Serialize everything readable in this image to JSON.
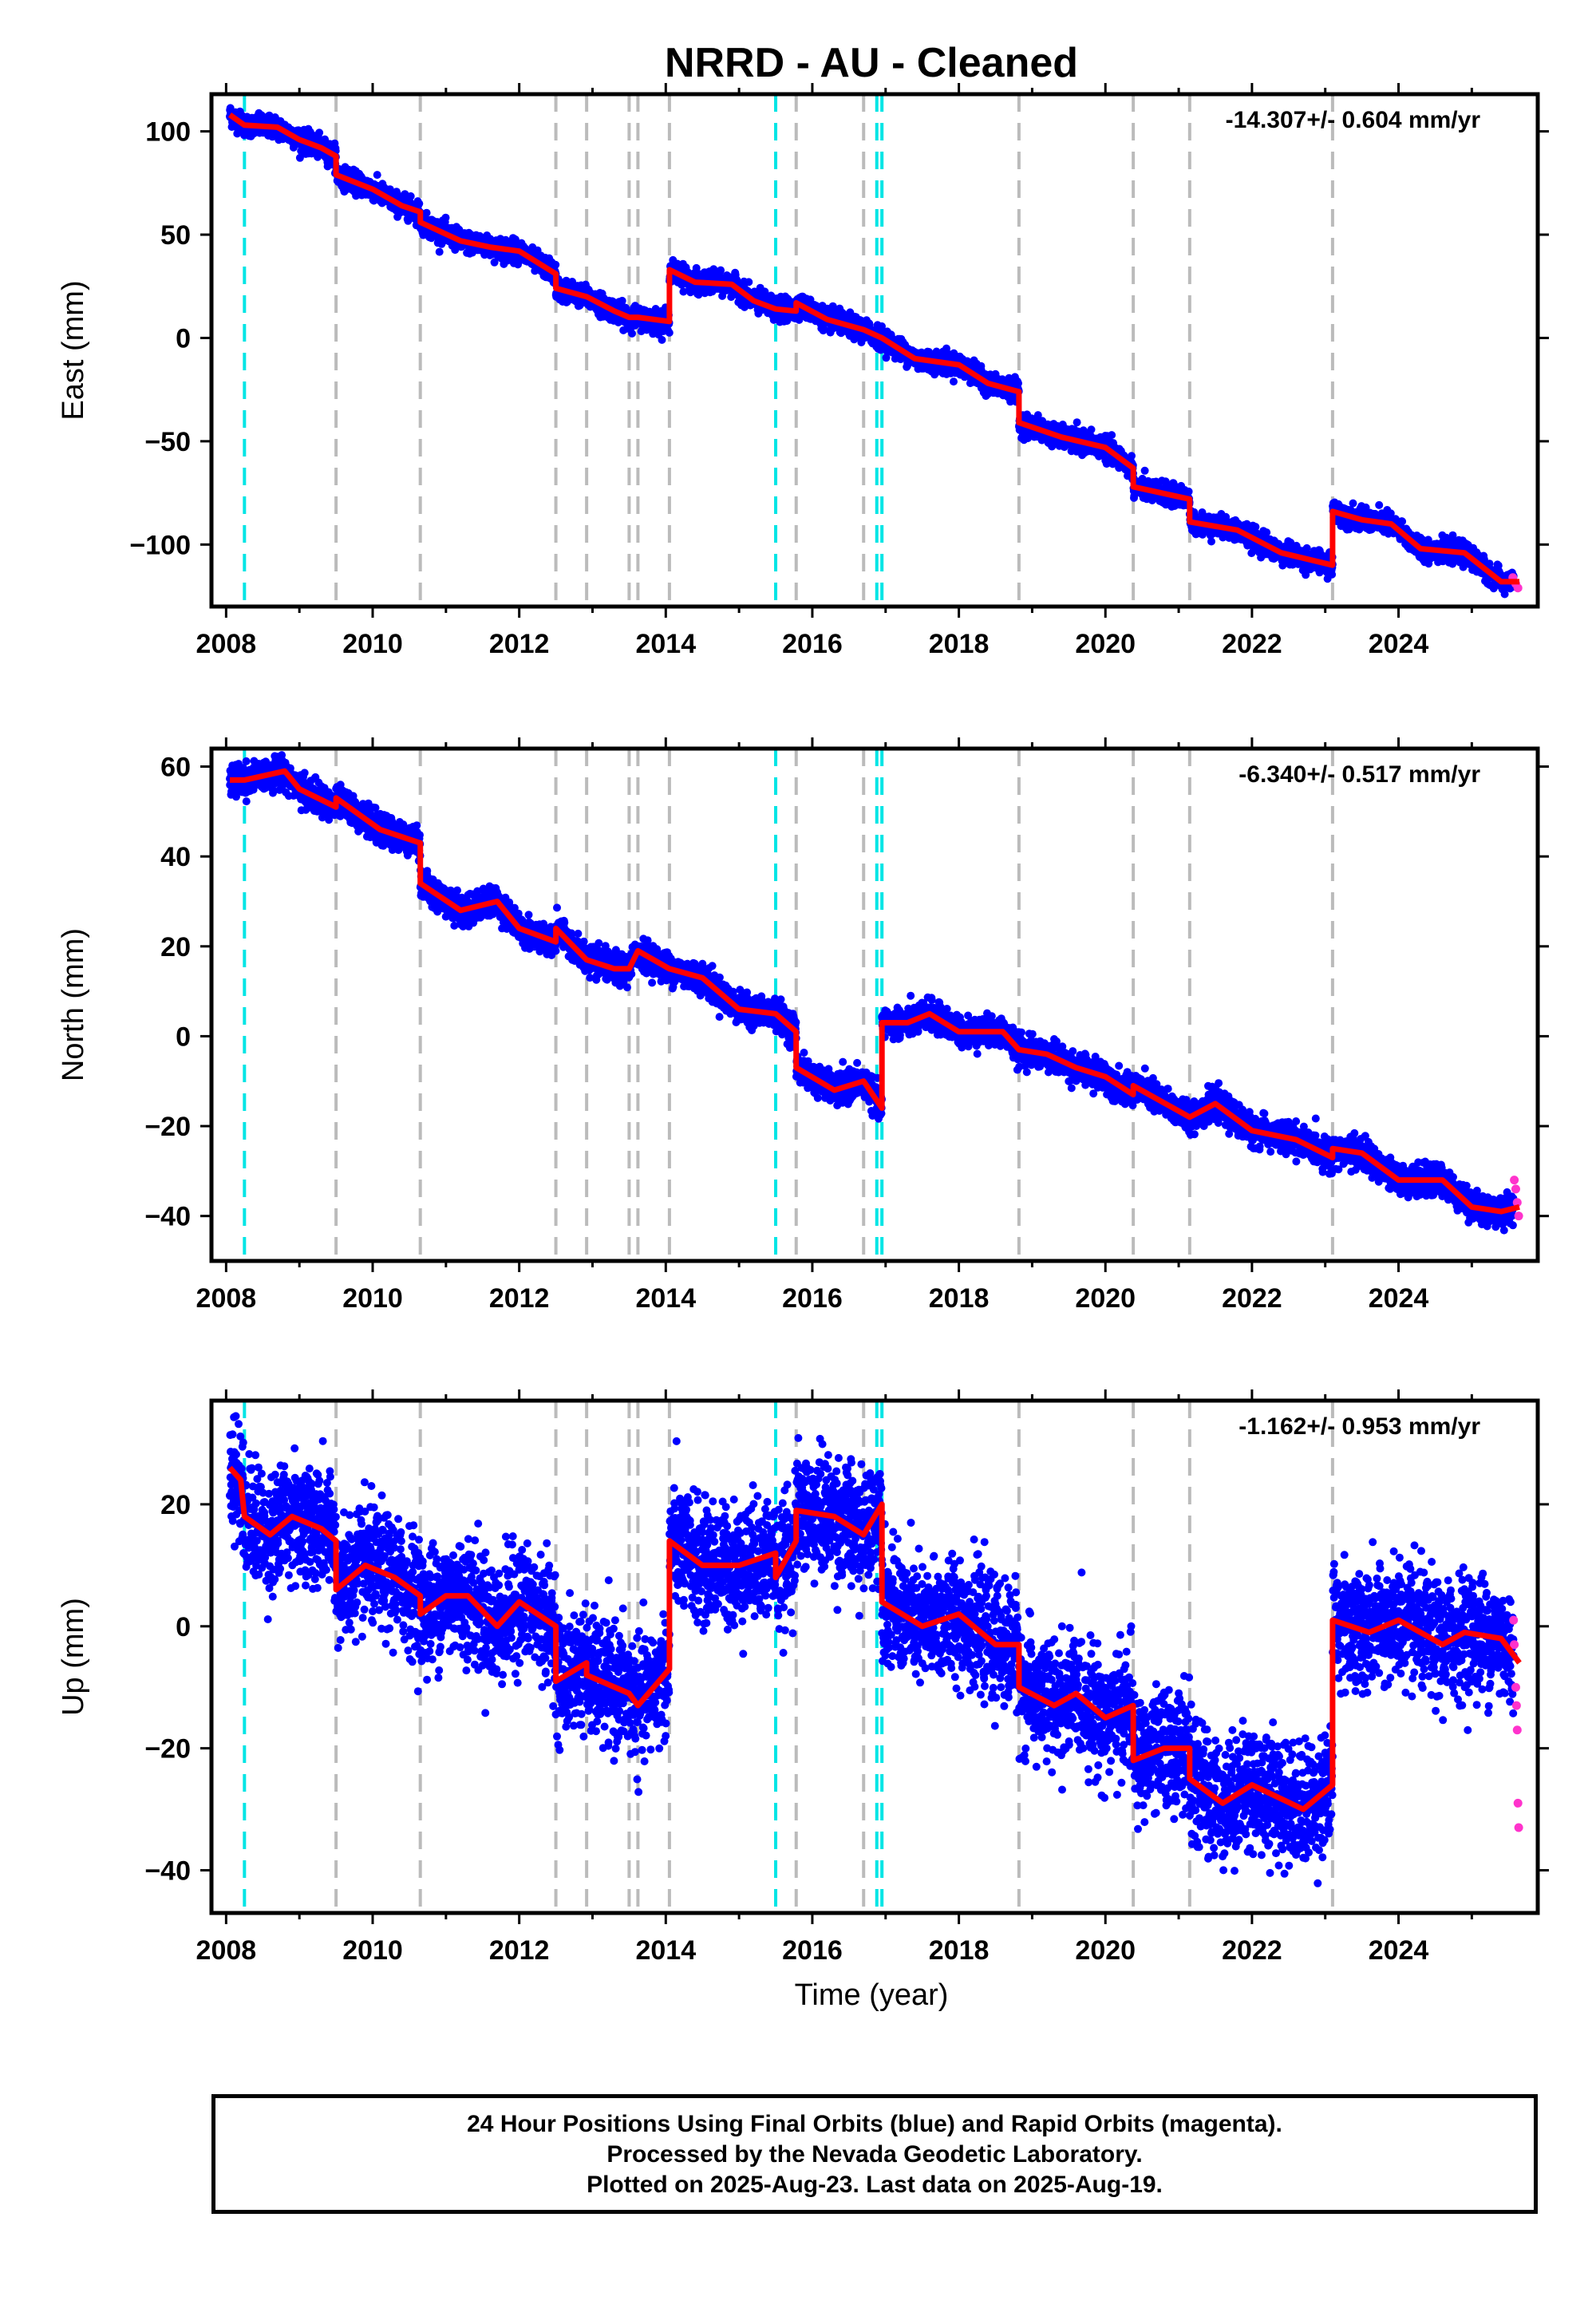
{
  "title": "NRRD  - AU - Cleaned",
  "xlabel": "Time (year)",
  "footer": {
    "line1": "24 Hour Positions Using Final Orbits (blue) and Rapid Orbits (magenta).",
    "line2": "Processed by the Nevada Geodetic Laboratory.",
    "line3": "Plotted on 2025-Aug-23. Last data on 2025-Aug-19."
  },
  "colors": {
    "final_orbits": "#0000ff",
    "rapid_orbits": "#ff33cc",
    "model": "#ff0000",
    "equipment_change": "#00e5e5",
    "earthquake": "#bbbbbb"
  },
  "chart_data": [
    {
      "type": "scatter",
      "panel": "east",
      "ylabel": "East (mm)",
      "rate_label": "-14.307+/- 0.604 mm/yr",
      "xlim": [
        2007.8,
        2025.9
      ],
      "ylim": [
        -130,
        118
      ],
      "x_ticks": [
        "2008",
        "2010",
        "2012",
        "2014",
        "2016",
        "2018",
        "2020",
        "2022",
        "2024"
      ],
      "y_ticks": [
        100,
        50,
        0,
        -50,
        -100
      ],
      "y_tick_labels": [
        "100",
        "50",
        "0",
        "−50",
        "−100"
      ],
      "cyan_lines": [
        2008.25,
        2015.5,
        2016.88,
        2016.95
      ],
      "gray_lines": [
        2009.5,
        2010.65,
        2012.5,
        2012.92,
        2013.5,
        2013.62,
        2014.05,
        2015.78,
        2016.7,
        2018.82,
        2020.38,
        2021.15,
        2023.1
      ],
      "model": [
        [
          2008.05,
          108
        ],
        [
          2008.25,
          103
        ],
        [
          2008.7,
          102
        ],
        [
          2009.0,
          96
        ],
        [
          2009.3,
          92
        ],
        [
          2009.5,
          88
        ],
        [
          2009.5,
          79
        ],
        [
          2010.0,
          72
        ],
        [
          2010.4,
          64
        ],
        [
          2010.65,
          61
        ],
        [
          2010.65,
          56
        ],
        [
          2011.2,
          47
        ],
        [
          2011.6,
          44
        ],
        [
          2012.0,
          42
        ],
        [
          2012.5,
          31
        ],
        [
          2012.5,
          24
        ],
        [
          2012.92,
          20
        ],
        [
          2013.3,
          13
        ],
        [
          2013.5,
          10
        ],
        [
          2013.62,
          10
        ],
        [
          2014.05,
          8
        ],
        [
          2014.05,
          33
        ],
        [
          2014.4,
          27
        ],
        [
          2014.9,
          26
        ],
        [
          2015.2,
          18
        ],
        [
          2015.5,
          14
        ],
        [
          2015.78,
          13
        ],
        [
          2015.78,
          17
        ],
        [
          2016.2,
          9
        ],
        [
          2016.7,
          4
        ],
        [
          2016.95,
          0
        ],
        [
          2017.4,
          -10
        ],
        [
          2018.0,
          -13
        ],
        [
          2018.4,
          -22
        ],
        [
          2018.82,
          -26
        ],
        [
          2018.82,
          -41
        ],
        [
          2019.4,
          -48
        ],
        [
          2020.0,
          -53
        ],
        [
          2020.38,
          -63
        ],
        [
          2020.38,
          -72
        ],
        [
          2021.15,
          -78
        ],
        [
          2021.15,
          -89
        ],
        [
          2021.8,
          -93
        ],
        [
          2022.4,
          -104
        ],
        [
          2023.1,
          -110
        ],
        [
          2023.1,
          -84
        ],
        [
          2023.5,
          -88
        ],
        [
          2023.9,
          -90
        ],
        [
          2024.3,
          -102
        ],
        [
          2024.9,
          -104
        ],
        [
          2025.4,
          -118
        ],
        [
          2025.65,
          -118
        ]
      ],
      "noise_sd": 2.5,
      "rapid": [
        [
          2025.56,
          -116
        ],
        [
          2025.6,
          -119
        ],
        [
          2025.63,
          -121
        ]
      ]
    },
    {
      "type": "scatter",
      "panel": "north",
      "ylabel": "North (mm)",
      "rate_label": "-6.340+/- 0.517 mm/yr",
      "xlim": [
        2007.8,
        2025.9
      ],
      "ylim": [
        -50,
        64
      ],
      "x_ticks": [
        "2008",
        "2010",
        "2012",
        "2014",
        "2016",
        "2018",
        "2020",
        "2022",
        "2024"
      ],
      "y_ticks": [
        60,
        40,
        20,
        0,
        -20,
        -40
      ],
      "y_tick_labels": [
        "60",
        "40",
        "20",
        "0",
        "−20",
        "−40"
      ],
      "cyan_lines": [
        2008.25,
        2015.5,
        2016.88,
        2016.95
      ],
      "gray_lines": [
        2009.5,
        2010.65,
        2012.5,
        2012.92,
        2013.5,
        2013.62,
        2014.05,
        2015.78,
        2016.7,
        2018.82,
        2020.38,
        2021.15,
        2023.1
      ],
      "model": [
        [
          2008.05,
          57
        ],
        [
          2008.25,
          57
        ],
        [
          2008.8,
          59
        ],
        [
          2009.0,
          55
        ],
        [
          2009.5,
          51
        ],
        [
          2009.5,
          53
        ],
        [
          2010.1,
          46
        ],
        [
          2010.65,
          43
        ],
        [
          2010.65,
          34
        ],
        [
          2011.2,
          28
        ],
        [
          2011.7,
          30
        ],
        [
          2012.0,
          24
        ],
        [
          2012.5,
          21
        ],
        [
          2012.5,
          24
        ],
        [
          2012.92,
          17
        ],
        [
          2013.3,
          15
        ],
        [
          2013.5,
          15
        ],
        [
          2013.62,
          19
        ],
        [
          2014.05,
          15
        ],
        [
          2014.5,
          13
        ],
        [
          2015.0,
          6
        ],
        [
          2015.5,
          5
        ],
        [
          2015.78,
          1
        ],
        [
          2015.78,
          -7
        ],
        [
          2016.3,
          -12
        ],
        [
          2016.7,
          -10
        ],
        [
          2016.95,
          -16
        ],
        [
          2016.95,
          3
        ],
        [
          2017.3,
          3
        ],
        [
          2017.6,
          5
        ],
        [
          2018.0,
          1
        ],
        [
          2018.6,
          1
        ],
        [
          2018.82,
          -3
        ],
        [
          2019.2,
          -4
        ],
        [
          2019.6,
          -7
        ],
        [
          2020.0,
          -9
        ],
        [
          2020.38,
          -13
        ],
        [
          2020.38,
          -11
        ],
        [
          2021.15,
          -18
        ],
        [
          2021.5,
          -15
        ],
        [
          2022.0,
          -21
        ],
        [
          2022.6,
          -23
        ],
        [
          2023.1,
          -27
        ],
        [
          2023.1,
          -25
        ],
        [
          2023.5,
          -26
        ],
        [
          2024.0,
          -32
        ],
        [
          2024.6,
          -32
        ],
        [
          2025.0,
          -38
        ],
        [
          2025.4,
          -39
        ],
        [
          2025.65,
          -38
        ]
      ],
      "noise_sd": 1.6,
      "rapid": [
        [
          2025.58,
          -32
        ],
        [
          2025.6,
          -34
        ],
        [
          2025.62,
          -37
        ],
        [
          2025.64,
          -40
        ]
      ]
    },
    {
      "type": "scatter",
      "panel": "up",
      "ylabel": "Up (mm)",
      "rate_label": "-1.162+/- 0.953 mm/yr",
      "xlim": [
        2007.8,
        2025.9
      ],
      "ylim": [
        -47,
        37
      ],
      "x_ticks": [
        "2008",
        "2010",
        "2012",
        "2014",
        "2016",
        "2018",
        "2020",
        "2022",
        "2024"
      ],
      "y_ticks": [
        20,
        0,
        -20,
        -40
      ],
      "y_tick_labels": [
        "20",
        "0",
        "−20",
        "−40"
      ],
      "cyan_lines": [
        2008.25,
        2015.5,
        2016.88,
        2016.95
      ],
      "gray_lines": [
        2009.5,
        2010.65,
        2012.5,
        2012.92,
        2013.5,
        2013.62,
        2014.05,
        2015.78,
        2016.7,
        2018.82,
        2020.38,
        2021.15,
        2023.1
      ],
      "model": [
        [
          2008.05,
          26
        ],
        [
          2008.2,
          24
        ],
        [
          2008.25,
          18
        ],
        [
          2008.6,
          15
        ],
        [
          2008.9,
          18
        ],
        [
          2009.3,
          16
        ],
        [
          2009.5,
          14
        ],
        [
          2009.5,
          6
        ],
        [
          2009.9,
          10
        ],
        [
          2010.3,
          8
        ],
        [
          2010.65,
          5
        ],
        [
          2010.65,
          2
        ],
        [
          2011.0,
          5
        ],
        [
          2011.3,
          5
        ],
        [
          2011.7,
          0
        ],
        [
          2012.0,
          4
        ],
        [
          2012.5,
          0
        ],
        [
          2012.5,
          -9
        ],
        [
          2012.92,
          -6
        ],
        [
          2012.92,
          -8
        ],
        [
          2013.5,
          -11
        ],
        [
          2013.62,
          -13
        ],
        [
          2014.05,
          -7
        ],
        [
          2014.05,
          14
        ],
        [
          2014.5,
          10
        ],
        [
          2015.0,
          10
        ],
        [
          2015.5,
          12
        ],
        [
          2015.5,
          8
        ],
        [
          2015.78,
          14
        ],
        [
          2015.78,
          19
        ],
        [
          2016.3,
          18
        ],
        [
          2016.7,
          15
        ],
        [
          2016.95,
          20
        ],
        [
          2016.95,
          4
        ],
        [
          2017.5,
          0
        ],
        [
          2018.0,
          2
        ],
        [
          2018.5,
          -3
        ],
        [
          2018.82,
          -3
        ],
        [
          2018.82,
          -10
        ],
        [
          2019.3,
          -13
        ],
        [
          2019.6,
          -11
        ],
        [
          2020.0,
          -15
        ],
        [
          2020.38,
          -13
        ],
        [
          2020.38,
          -22
        ],
        [
          2020.8,
          -20
        ],
        [
          2021.15,
          -20
        ],
        [
          2021.15,
          -25
        ],
        [
          2021.6,
          -29
        ],
        [
          2022.0,
          -26
        ],
        [
          2022.7,
          -30
        ],
        [
          2023.1,
          -26
        ],
        [
          2023.1,
          1
        ],
        [
          2023.6,
          -1
        ],
        [
          2024.0,
          1
        ],
        [
          2024.6,
          -3
        ],
        [
          2024.9,
          -1
        ],
        [
          2025.4,
          -2
        ],
        [
          2025.65,
          -6
        ]
      ],
      "noise_sd": 4.8,
      "rapid": [
        [
          2025.57,
          1
        ],
        [
          2025.58,
          -3
        ],
        [
          2025.6,
          -10
        ],
        [
          2025.61,
          -13
        ],
        [
          2025.62,
          -17
        ],
        [
          2025.63,
          -29
        ],
        [
          2025.64,
          -33
        ]
      ]
    }
  ]
}
